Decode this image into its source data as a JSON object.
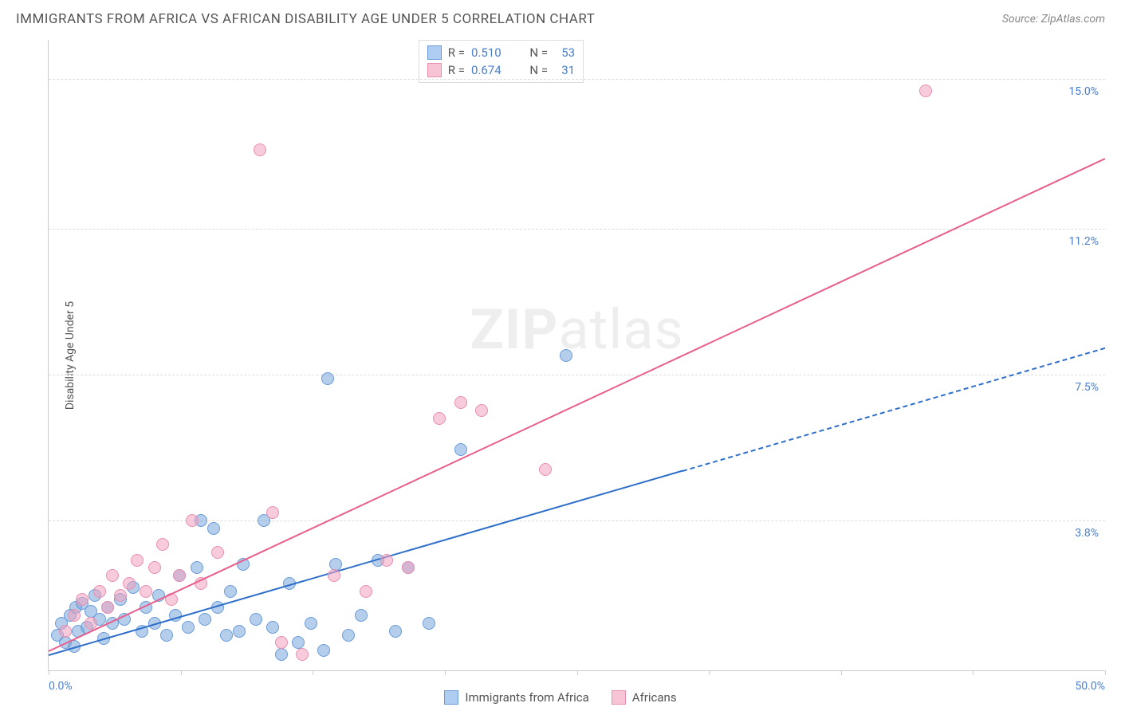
{
  "header": {
    "title": "IMMIGRANTS FROM AFRICA VS AFRICAN DISABILITY AGE UNDER 5 CORRELATION CHART",
    "source_prefix": "Source: ",
    "source": "ZipAtlas.com"
  },
  "chart": {
    "type": "scatter",
    "ylabel": "Disability Age Under 5",
    "background_color": "#ffffff",
    "grid_color": "#dddddd",
    "axis_color": "#cccccc",
    "tick_label_color": "#4a7ec9",
    "label_fontsize": 14,
    "xlim": [
      0,
      50
    ],
    "ylim": [
      0,
      16
    ],
    "x_ticks": [
      0,
      6.25,
      12.5,
      18.75,
      25,
      31.25,
      37.5,
      43.75,
      50
    ],
    "x_tick_labels_shown": {
      "0": "0.0%",
      "50": "50.0%"
    },
    "y_gridlines": [
      3.8,
      7.5,
      11.2,
      15.0
    ],
    "y_tick_labels": [
      "3.8%",
      "7.5%",
      "11.2%",
      "15.0%"
    ],
    "watermark": {
      "bold": "ZIP",
      "light": "atlas"
    },
    "series": [
      {
        "name": "Immigrants from Africa",
        "marker_fill": "rgba(120,165,220,0.55)",
        "marker_stroke": "#6a9bd8",
        "marker_radius": 8,
        "trend_color": "#2e6fc9",
        "trend_solid_end_x": 30,
        "trend": {
          "x1": 0,
          "y1": 0.4,
          "x2": 50,
          "y2": 8.2
        },
        "R": "0.510",
        "N": "53",
        "swatch_fill": "#aecdf0",
        "swatch_border": "#6a9bd8",
        "points": [
          [
            0.4,
            0.9
          ],
          [
            0.6,
            1.2
          ],
          [
            0.8,
            0.7
          ],
          [
            1.0,
            1.4
          ],
          [
            1.2,
            0.6
          ],
          [
            1.3,
            1.6
          ],
          [
            1.4,
            1.0
          ],
          [
            1.6,
            1.7
          ],
          [
            1.8,
            1.1
          ],
          [
            2.0,
            1.5
          ],
          [
            2.2,
            1.9
          ],
          [
            2.4,
            1.3
          ],
          [
            2.6,
            0.8
          ],
          [
            2.8,
            1.6
          ],
          [
            3.0,
            1.2
          ],
          [
            3.4,
            1.8
          ],
          [
            3.6,
            1.3
          ],
          [
            4.0,
            2.1
          ],
          [
            4.4,
            1.0
          ],
          [
            4.6,
            1.6
          ],
          [
            5.0,
            1.2
          ],
          [
            5.2,
            1.9
          ],
          [
            5.6,
            0.9
          ],
          [
            6.0,
            1.4
          ],
          [
            6.2,
            2.4
          ],
          [
            6.6,
            1.1
          ],
          [
            7.0,
            2.6
          ],
          [
            7.4,
            1.3
          ],
          [
            7.8,
            3.6
          ],
          [
            8.0,
            1.6
          ],
          [
            8.4,
            0.9
          ],
          [
            8.6,
            2.0
          ],
          [
            9.0,
            1.0
          ],
          [
            9.2,
            2.7
          ],
          [
            9.8,
            1.3
          ],
          [
            10.2,
            3.8
          ],
          [
            10.6,
            1.1
          ],
          [
            11.0,
            0.4
          ],
          [
            11.4,
            2.2
          ],
          [
            11.8,
            0.7
          ],
          [
            12.4,
            1.2
          ],
          [
            13.0,
            0.5
          ],
          [
            13.2,
            7.4
          ],
          [
            13.6,
            2.7
          ],
          [
            14.2,
            0.9
          ],
          [
            14.8,
            1.4
          ],
          [
            15.6,
            2.8
          ],
          [
            16.4,
            1.0
          ],
          [
            17.0,
            2.6
          ],
          [
            18.0,
            1.2
          ],
          [
            19.5,
            5.6
          ],
          [
            24.5,
            8.0
          ],
          [
            7.2,
            3.8
          ]
        ]
      },
      {
        "name": "Africans",
        "marker_fill": "rgba(240,160,190,0.55)",
        "marker_stroke": "#e88fb0",
        "marker_radius": 8,
        "trend_color": "#e85f8e",
        "trend_solid_end_x": 50,
        "trend": {
          "x1": 0,
          "y1": 0.5,
          "x2": 50,
          "y2": 13.0
        },
        "R": "0.674",
        "N": "31",
        "swatch_fill": "#f7c4d6",
        "swatch_border": "#e88fb0",
        "points": [
          [
            0.8,
            1.0
          ],
          [
            1.2,
            1.4
          ],
          [
            1.6,
            1.8
          ],
          [
            2.0,
            1.2
          ],
          [
            2.4,
            2.0
          ],
          [
            2.8,
            1.6
          ],
          [
            3.0,
            2.4
          ],
          [
            3.4,
            1.9
          ],
          [
            3.8,
            2.2
          ],
          [
            4.2,
            2.8
          ],
          [
            4.6,
            2.0
          ],
          [
            5.0,
            2.6
          ],
          [
            5.4,
            3.2
          ],
          [
            5.8,
            1.8
          ],
          [
            6.2,
            2.4
          ],
          [
            6.8,
            3.8
          ],
          [
            7.2,
            2.2
          ],
          [
            8.0,
            3.0
          ],
          [
            10.0,
            13.2
          ],
          [
            11.0,
            0.7
          ],
          [
            12.0,
            0.4
          ],
          [
            13.5,
            2.4
          ],
          [
            15.0,
            2.0
          ],
          [
            16.0,
            2.8
          ],
          [
            17.0,
            2.6
          ],
          [
            18.5,
            6.4
          ],
          [
            19.5,
            6.8
          ],
          [
            20.5,
            6.6
          ],
          [
            23.5,
            5.1
          ],
          [
            41.5,
            14.7
          ],
          [
            10.6,
            4.0
          ]
        ]
      }
    ],
    "legend_bottom": [
      {
        "label": "Immigrants from Africa",
        "fill": "#aecdf0",
        "border": "#6a9bd8"
      },
      {
        "label": "Africans",
        "fill": "#f7c4d6",
        "border": "#e88fb0"
      }
    ]
  }
}
